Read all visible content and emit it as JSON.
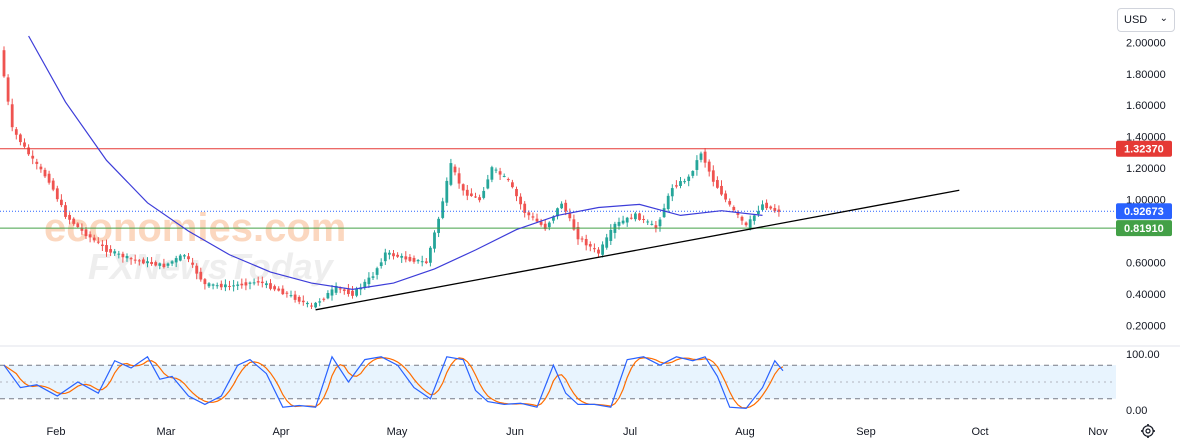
{
  "currency": "USD",
  "watermarks": [
    "economies.com",
    "FXNewsToday"
  ],
  "colors": {
    "candle_up": "#26a69a",
    "candle_down": "#ef5350",
    "moving_average": "#3d3dd9",
    "trendline": "#000000",
    "resistance": "#e53935",
    "support": "#43a047",
    "price_line": "#2962ff",
    "stoch_k": "#2962ff",
    "stoch_d": "#ff6d00"
  },
  "chart_data": [
    {
      "type": "candlestick",
      "x_ticks": [
        "Feb",
        "Mar",
        "Apr",
        "May",
        "Jun",
        "Jul",
        "Aug",
        "Sep",
        "Oct",
        "Nov"
      ],
      "y_ticks": [
        "2.00000",
        "1.80000",
        "1.60000",
        "1.40000",
        "1.20000",
        "1.00000",
        "0.60000",
        "0.40000",
        "0.20000"
      ],
      "ylim": [
        0.14,
        2.04
      ],
      "price_labels": [
        {
          "name": "resistance",
          "text": "1.32370",
          "value": 1.3237
        },
        {
          "name": "last-price",
          "text": "0.92673",
          "value": 0.92673
        },
        {
          "name": "support",
          "text": "0.81910",
          "value": 0.8191
        }
      ],
      "anchors": [
        {
          "t": 0,
          "v": 1.95
        },
        {
          "t": 3,
          "v": 1.45
        },
        {
          "t": 8,
          "v": 1.25
        },
        {
          "t": 12,
          "v": 1.12
        },
        {
          "t": 16,
          "v": 0.9
        },
        {
          "t": 20,
          "v": 0.8
        },
        {
          "t": 26,
          "v": 0.68
        },
        {
          "t": 32,
          "v": 0.62
        },
        {
          "t": 40,
          "v": 0.58
        },
        {
          "t": 45,
          "v": 0.65
        },
        {
          "t": 50,
          "v": 0.46
        },
        {
          "t": 56,
          "v": 0.45
        },
        {
          "t": 63,
          "v": 0.48
        },
        {
          "t": 70,
          "v": 0.4
        },
        {
          "t": 76,
          "v": 0.32
        },
        {
          "t": 82,
          "v": 0.44
        },
        {
          "t": 86,
          "v": 0.4
        },
        {
          "t": 91,
          "v": 0.52
        },
        {
          "t": 94,
          "v": 0.66
        },
        {
          "t": 100,
          "v": 0.62
        },
        {
          "t": 104,
          "v": 0.6
        },
        {
          "t": 107,
          "v": 0.88
        },
        {
          "t": 110,
          "v": 1.22
        },
        {
          "t": 113,
          "v": 1.05
        },
        {
          "t": 117,
          "v": 1.0
        },
        {
          "t": 120,
          "v": 1.2
        },
        {
          "t": 124,
          "v": 1.12
        },
        {
          "t": 128,
          "v": 0.92
        },
        {
          "t": 133,
          "v": 0.82
        },
        {
          "t": 137,
          "v": 0.98
        },
        {
          "t": 141,
          "v": 0.76
        },
        {
          "t": 146,
          "v": 0.66
        },
        {
          "t": 150,
          "v": 0.84
        },
        {
          "t": 155,
          "v": 0.9
        },
        {
          "t": 160,
          "v": 0.82
        },
        {
          "t": 164,
          "v": 1.08
        },
        {
          "t": 168,
          "v": 1.14
        },
        {
          "t": 171,
          "v": 1.3
        },
        {
          "t": 174,
          "v": 1.12
        },
        {
          "t": 178,
          "v": 0.96
        },
        {
          "t": 182,
          "v": 0.83
        },
        {
          "t": 186,
          "v": 0.97
        },
        {
          "t": 189,
          "v": 0.93
        }
      ],
      "moving_average": [
        {
          "t": 6,
          "v": 2.04
        },
        {
          "t": 15,
          "v": 1.62
        },
        {
          "t": 25,
          "v": 1.25
        },
        {
          "t": 35,
          "v": 0.98
        },
        {
          "t": 45,
          "v": 0.8
        },
        {
          "t": 55,
          "v": 0.65
        },
        {
          "t": 65,
          "v": 0.54
        },
        {
          "t": 75,
          "v": 0.47
        },
        {
          "t": 85,
          "v": 0.43
        },
        {
          "t": 95,
          "v": 0.47
        },
        {
          "t": 105,
          "v": 0.56
        },
        {
          "t": 115,
          "v": 0.68
        },
        {
          "t": 125,
          "v": 0.81
        },
        {
          "t": 135,
          "v": 0.9
        },
        {
          "t": 145,
          "v": 0.95
        },
        {
          "t": 155,
          "v": 0.97
        },
        {
          "t": 165,
          "v": 0.9
        },
        {
          "t": 175,
          "v": 0.93
        },
        {
          "t": 185,
          "v": 0.9
        }
      ],
      "trendline": [
        {
          "t": 76,
          "v": 0.3
        },
        {
          "t": 233,
          "v": 1.06
        }
      ]
    },
    {
      "type": "line",
      "name": "stochastic",
      "y_ticks": [
        "100.00",
        "0.00"
      ],
      "ylim": [
        0,
        100
      ],
      "levels": [
        80,
        50,
        20
      ],
      "k_points": [
        {
          "t": 0,
          "v": 80
        },
        {
          "t": 4,
          "v": 40
        },
        {
          "t": 8,
          "v": 45
        },
        {
          "t": 13,
          "v": 25
        },
        {
          "t": 18,
          "v": 50
        },
        {
          "t": 23,
          "v": 30
        },
        {
          "t": 27,
          "v": 88
        },
        {
          "t": 31,
          "v": 75
        },
        {
          "t": 35,
          "v": 95
        },
        {
          "t": 38,
          "v": 55
        },
        {
          "t": 41,
          "v": 60
        },
        {
          "t": 45,
          "v": 25
        },
        {
          "t": 49,
          "v": 10
        },
        {
          "t": 53,
          "v": 25
        },
        {
          "t": 57,
          "v": 80
        },
        {
          "t": 60,
          "v": 90
        },
        {
          "t": 64,
          "v": 65
        },
        {
          "t": 68,
          "v": 5
        },
        {
          "t": 72,
          "v": 8
        },
        {
          "t": 76,
          "v": 5
        },
        {
          "t": 80,
          "v": 95
        },
        {
          "t": 84,
          "v": 50
        },
        {
          "t": 88,
          "v": 90
        },
        {
          "t": 92,
          "v": 95
        },
        {
          "t": 96,
          "v": 80
        },
        {
          "t": 100,
          "v": 40
        },
        {
          "t": 104,
          "v": 20
        },
        {
          "t": 108,
          "v": 95
        },
        {
          "t": 112,
          "v": 90
        },
        {
          "t": 115,
          "v": 35
        },
        {
          "t": 118,
          "v": 15
        },
        {
          "t": 122,
          "v": 10
        },
        {
          "t": 126,
          "v": 12
        },
        {
          "t": 130,
          "v": 5
        },
        {
          "t": 134,
          "v": 80
        },
        {
          "t": 137,
          "v": 30
        },
        {
          "t": 140,
          "v": 10
        },
        {
          "t": 144,
          "v": 10
        },
        {
          "t": 148,
          "v": 5
        },
        {
          "t": 152,
          "v": 90
        },
        {
          "t": 156,
          "v": 95
        },
        {
          "t": 160,
          "v": 80
        },
        {
          "t": 164,
          "v": 95
        },
        {
          "t": 168,
          "v": 88
        },
        {
          "t": 171,
          "v": 95
        },
        {
          "t": 174,
          "v": 60
        },
        {
          "t": 177,
          "v": 5
        },
        {
          "t": 181,
          "v": 3
        },
        {
          "t": 185,
          "v": 40
        },
        {
          "t": 188,
          "v": 88
        },
        {
          "t": 190,
          "v": 70
        }
      ]
    }
  ]
}
